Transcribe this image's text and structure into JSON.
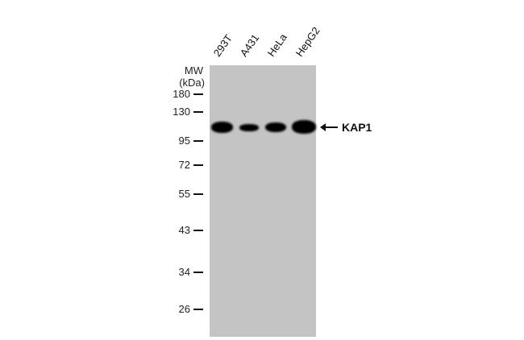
{
  "lanes": [
    "293T",
    "A431",
    "HeLa",
    "HepG2"
  ],
  "mw_header": [
    "MW",
    "(kDa)"
  ],
  "markers": [
    "180",
    "130",
    "95",
    "72",
    "55",
    "43",
    "34",
    "26"
  ],
  "target": {
    "label": "KAP1",
    "arrow": "arrow-left-icon"
  },
  "colors": {
    "membrane": "#c4c4c4",
    "band": "#000000"
  }
}
